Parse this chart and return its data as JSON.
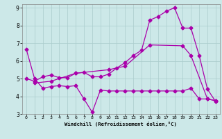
{
  "xlabel": "Windchill (Refroidissement éolien,°C)",
  "background_color": "#cce8e8",
  "grid_color": "#aacccc",
  "line_color": "#aa00aa",
  "xlim": [
    -0.5,
    23.5
  ],
  "ylim": [
    3,
    9.2
  ],
  "xticks": [
    0,
    1,
    2,
    3,
    4,
    5,
    6,
    7,
    8,
    9,
    10,
    11,
    12,
    13,
    14,
    15,
    16,
    17,
    18,
    19,
    20,
    21,
    22,
    23
  ],
  "yticks": [
    3,
    4,
    5,
    6,
    7,
    8,
    9
  ],
  "line1_x": [
    0,
    1,
    2,
    3,
    4,
    5,
    6,
    7,
    8,
    9,
    10,
    11,
    12,
    13,
    14,
    15,
    16,
    17,
    18,
    19,
    20,
    21,
    22,
    23
  ],
  "line1_y": [
    6.65,
    5.0,
    4.45,
    4.55,
    4.6,
    4.55,
    4.6,
    3.85,
    3.1,
    4.35,
    4.3,
    4.3,
    4.3,
    4.3,
    4.3,
    4.3,
    4.3,
    4.3,
    4.3,
    4.3,
    4.45,
    3.85,
    3.85,
    3.75
  ],
  "line2_x": [
    0,
    1,
    2,
    3,
    4,
    5,
    6,
    7,
    8,
    9,
    10,
    11,
    12,
    13,
    14,
    15,
    16,
    17,
    18,
    19,
    20,
    21,
    22,
    23
  ],
  "line2_y": [
    5.0,
    4.85,
    5.1,
    5.2,
    5.05,
    5.05,
    5.3,
    5.35,
    5.1,
    5.1,
    5.25,
    5.6,
    5.9,
    6.3,
    6.6,
    8.3,
    8.5,
    8.8,
    9.0,
    7.85,
    7.85,
    6.3,
    4.4,
    3.7
  ],
  "line3_x": [
    1,
    3,
    6,
    10,
    12,
    15,
    19,
    20,
    22,
    23
  ],
  "line3_y": [
    4.75,
    4.85,
    5.3,
    5.5,
    5.7,
    6.9,
    6.85,
    6.3,
    3.85,
    3.75
  ],
  "marker": "D",
  "markersize": 2.5,
  "linewidth": 0.9
}
